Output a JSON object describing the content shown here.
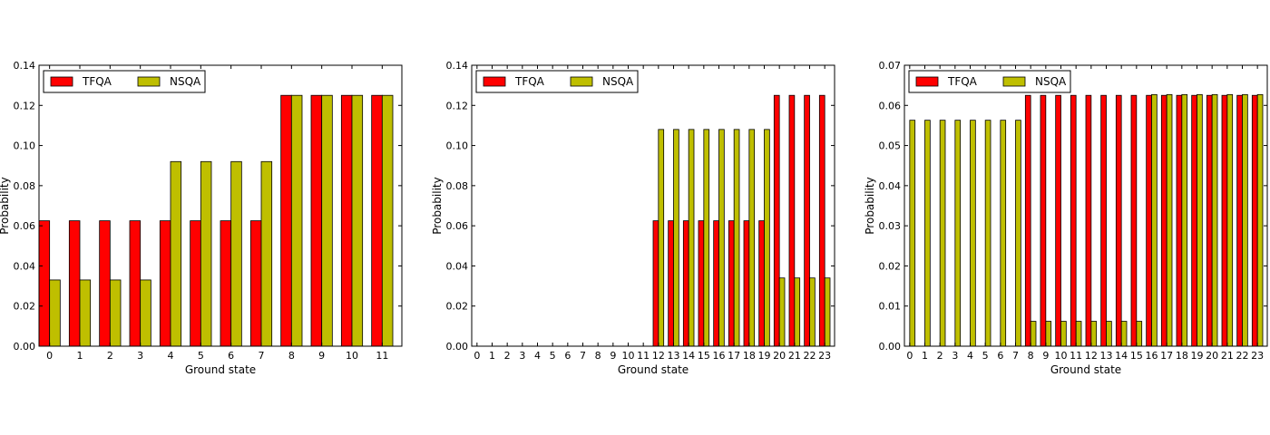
{
  "colors": {
    "TFQA": "#ff0000",
    "NSQA": "#bfbf00",
    "edge": "#000000"
  },
  "chart_data": [
    {
      "type": "bar",
      "xlabel": "Ground state",
      "ylabel": "Probability",
      "ylim": [
        0,
        0.14
      ],
      "yticks": [
        "0.00",
        "0.02",
        "0.04",
        "0.06",
        "0.08",
        "0.10",
        "0.12",
        "0.14"
      ],
      "categories": [
        "0",
        "1",
        "2",
        "3",
        "4",
        "5",
        "6",
        "7",
        "8",
        "9",
        "10",
        "11"
      ],
      "legend": {
        "position": "top-left",
        "columns": 2
      },
      "series": [
        {
          "name": "TFQA",
          "values": [
            0.0625,
            0.0625,
            0.0625,
            0.0625,
            0.0625,
            0.0625,
            0.0625,
            0.0625,
            0.125,
            0.125,
            0.125,
            0.125
          ]
        },
        {
          "name": "NSQA",
          "values": [
            0.033,
            0.033,
            0.033,
            0.033,
            0.092,
            0.092,
            0.092,
            0.092,
            0.125,
            0.125,
            0.125,
            0.125
          ]
        }
      ]
    },
    {
      "type": "bar",
      "xlabel": "Ground state",
      "ylabel": "Probability",
      "ylim": [
        0,
        0.14
      ],
      "yticks": [
        "0.00",
        "0.02",
        "0.04",
        "0.06",
        "0.08",
        "0.10",
        "0.12",
        "0.14"
      ],
      "categories": [
        "0",
        "1",
        "2",
        "3",
        "4",
        "5",
        "6",
        "7",
        "8",
        "9",
        "10",
        "11",
        "12",
        "13",
        "14",
        "15",
        "16",
        "17",
        "18",
        "19",
        "20",
        "21",
        "22",
        "23"
      ],
      "legend": {
        "position": "top-left",
        "columns": 2
      },
      "series": [
        {
          "name": "TFQA",
          "values": [
            0,
            0,
            0,
            0,
            0,
            0,
            0,
            0,
            0,
            0,
            0,
            0,
            0.0625,
            0.0625,
            0.0625,
            0.0625,
            0.0625,
            0.0625,
            0.0625,
            0.0625,
            0.125,
            0.125,
            0.125,
            0.125
          ]
        },
        {
          "name": "NSQA",
          "values": [
            0,
            0,
            0,
            0,
            0,
            0,
            0,
            0,
            0,
            0,
            0,
            0,
            0.108,
            0.108,
            0.108,
            0.108,
            0.108,
            0.108,
            0.108,
            0.108,
            0.034,
            0.034,
            0.034,
            0.034
          ]
        }
      ]
    },
    {
      "type": "bar",
      "xlabel": "Ground state",
      "ylabel": "Probability",
      "ylim": [
        0,
        0.07
      ],
      "yticks": [
        "0.00",
        "0.01",
        "0.02",
        "0.03",
        "0.04",
        "0.05",
        "0.06",
        "0.07"
      ],
      "categories": [
        "0",
        "1",
        "2",
        "3",
        "4",
        "5",
        "6",
        "7",
        "8",
        "9",
        "10",
        "11",
        "12",
        "13",
        "14",
        "15",
        "16",
        "17",
        "18",
        "19",
        "20",
        "21",
        "22",
        "23"
      ],
      "legend": {
        "position": "top-left",
        "columns": 2
      },
      "series": [
        {
          "name": "TFQA",
          "values": [
            0,
            0,
            0,
            0,
            0,
            0,
            0,
            0,
            0.0625,
            0.0625,
            0.0625,
            0.0625,
            0.0625,
            0.0625,
            0.0625,
            0.0625,
            0.0625,
            0.0625,
            0.0625,
            0.0625,
            0.0625,
            0.0625,
            0.0625,
            0.0625
          ]
        },
        {
          "name": "NSQA",
          "values": [
            0.0563,
            0.0563,
            0.0563,
            0.0563,
            0.0563,
            0.0563,
            0.0563,
            0.0563,
            0.0062,
            0.0062,
            0.0062,
            0.0062,
            0.0062,
            0.0062,
            0.0062,
            0.0062,
            0.0627,
            0.0627,
            0.0627,
            0.0627,
            0.0627,
            0.0627,
            0.0627,
            0.0627
          ]
        }
      ]
    }
  ]
}
